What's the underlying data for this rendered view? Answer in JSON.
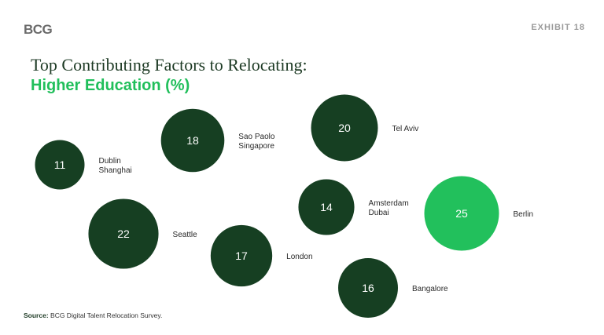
{
  "header": {
    "logo": "BCG",
    "exhibit": "EXHIBIT 18",
    "title": "Top Contributing Factors to Relocating:",
    "subtitle": "Higher Education",
    "subtitle_unit": "(%)"
  },
  "source": {
    "label": "Source:",
    "text": "BCG Digital Talent Relocation Survey."
  },
  "colors": {
    "dark_bubble": "#163f22",
    "highlight_bubble": "#22c05c",
    "bubble_text": "#ffffff",
    "label_text": "#2a2a2a"
  },
  "chart_data": {
    "type": "bubble",
    "title": "Top Contributing Factors to Relocating: Higher Education (%)",
    "points": [
      {
        "value": 11,
        "label": [
          "Dublin",
          "Shanghai"
        ],
        "highlight": false
      },
      {
        "value": 18,
        "label": [
          "Sao Paolo",
          "Singapore"
        ],
        "highlight": false
      },
      {
        "value": 20,
        "label": [
          "Tel Aviv"
        ],
        "highlight": false
      },
      {
        "value": 14,
        "label": [
          "Amsterdam",
          "Dubai"
        ],
        "highlight": false
      },
      {
        "value": 25,
        "label": [
          "Berlin"
        ],
        "highlight": true
      },
      {
        "value": 22,
        "label": [
          "Seattle"
        ],
        "highlight": false
      },
      {
        "value": 17,
        "label": [
          "London"
        ],
        "highlight": false
      },
      {
        "value": 16,
        "label": [
          "Bangalore"
        ],
        "highlight": false
      }
    ]
  }
}
